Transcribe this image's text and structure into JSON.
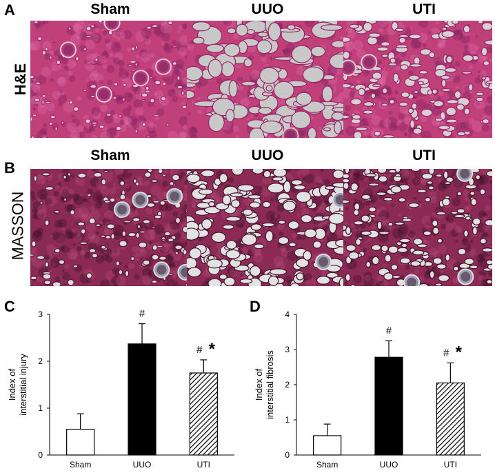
{
  "panels": {
    "A": {
      "letter": "A",
      "row_label": "H&E",
      "columns": [
        "Sham",
        "UUO",
        "UTI"
      ]
    },
    "B": {
      "letter": "B",
      "row_label": "MASSON",
      "columns": [
        "Sham",
        "UUO",
        "UTI"
      ]
    },
    "C": {
      "letter": "C"
    },
    "D": {
      "letter": "D"
    }
  },
  "colors": {
    "he_background": "#c0407a",
    "masson_background": "#8a2a55",
    "lumen": "#c8c8c8",
    "sham_bar": "#ffffff",
    "uuo_bar": "#000000",
    "uti_bar_hatch": "#000000"
  },
  "chart_data": [
    {
      "type": "bar",
      "panel": "C",
      "categories": [
        "Sham",
        "UUO",
        "UTI"
      ],
      "values": [
        0.55,
        2.37,
        1.75
      ],
      "errors": [
        0.33,
        0.43,
        0.28
      ],
      "annotations": [
        "",
        "#",
        "# *"
      ],
      "ylabel": "Index of\ninterstitial injury",
      "xlabel": "",
      "yticks": [
        "0",
        "1",
        "2",
        "3"
      ],
      "ylim": [
        0,
        3
      ]
    },
    {
      "type": "bar",
      "panel": "D",
      "categories": [
        "Sham",
        "UUO",
        "UTI"
      ],
      "values": [
        0.55,
        2.78,
        2.05
      ],
      "errors": [
        0.33,
        0.47,
        0.57
      ],
      "annotations": [
        "",
        "#",
        "# *"
      ],
      "ylabel": "Index of\ninterstitial fibrosis",
      "xlabel": "",
      "yticks": [
        "0",
        "1",
        "2",
        "3",
        "4"
      ],
      "ylim": [
        0,
        4
      ]
    }
  ]
}
